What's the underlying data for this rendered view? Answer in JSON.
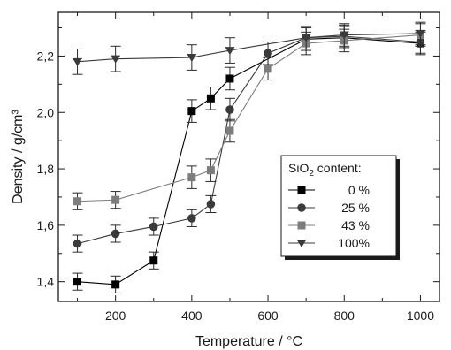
{
  "chart_data": {
    "type": "line",
    "xlabel": "Temperature / °C",
    "ylabel": "Density / g/cm³",
    "xlim": [
      50,
      1050
    ],
    "ylim": [
      1.33,
      2.355
    ],
    "xticks": [
      200,
      400,
      600,
      800,
      1000
    ],
    "yticks": [
      1.4,
      1.6,
      1.8,
      2.0,
      2.2
    ],
    "ytick_labels": [
      "1,4",
      "1,6",
      "1,8",
      "2,0",
      "2,2"
    ],
    "grid": false,
    "legend": {
      "title_prefix": "SiO",
      "title_sub": "2",
      "title_suffix": " content:",
      "placement": "center-right"
    },
    "series": [
      {
        "name": "0 %",
        "marker": "square",
        "color": "#000000",
        "x": [
          100,
          200,
          300,
          400,
          450,
          500,
          700,
          800,
          1000
        ],
        "y": [
          1.4,
          1.39,
          1.475,
          2.005,
          2.05,
          2.12,
          2.26,
          2.265,
          2.245
        ],
        "err": [
          0.03,
          0.03,
          0.03,
          0.04,
          0.04,
          0.04,
          0.04,
          0.04,
          0.04
        ]
      },
      {
        "name": "25 %",
        "marker": "circle",
        "color": "#3a3a3a",
        "x": [
          100,
          200,
          300,
          400,
          450,
          500,
          600,
          700,
          800,
          1000
        ],
        "y": [
          1.535,
          1.57,
          1.595,
          1.625,
          1.675,
          2.01,
          2.21,
          2.265,
          2.27,
          2.25
        ],
        "err": [
          0.03,
          0.03,
          0.03,
          0.03,
          0.03,
          0.04,
          0.04,
          0.04,
          0.04,
          0.04
        ]
      },
      {
        "name": "43 %",
        "marker": "square",
        "color": "#7d7d7d",
        "x": [
          100,
          200,
          400,
          450,
          500,
          600,
          700,
          800,
          1000
        ],
        "y": [
          1.685,
          1.69,
          1.77,
          1.795,
          1.935,
          2.155,
          2.245,
          2.255,
          2.275
        ],
        "err": [
          0.03,
          0.03,
          0.04,
          0.04,
          0.04,
          0.04,
          0.04,
          0.04,
          0.04
        ]
      },
      {
        "name": "100%",
        "marker": "triangle-down",
        "color": "#3a3a3a",
        "x": [
          100,
          200,
          400,
          500,
          700,
          800,
          1000
        ],
        "y": [
          2.18,
          2.19,
          2.195,
          2.22,
          2.265,
          2.275,
          2.28
        ],
        "err": [
          0.045,
          0.045,
          0.045,
          0.045,
          0.04,
          0.04,
          0.04
        ]
      }
    ]
  }
}
